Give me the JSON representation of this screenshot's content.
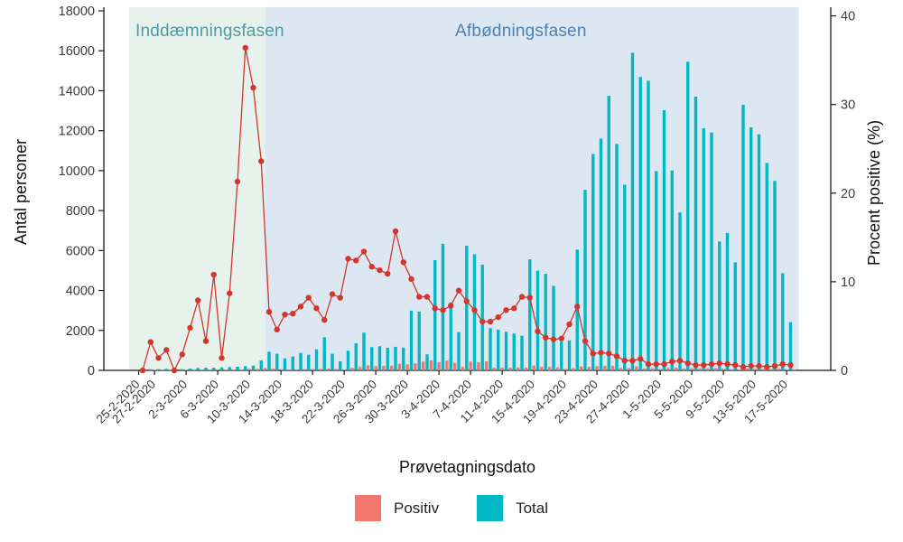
{
  "chart_data": {
    "type": "bar",
    "subtype": "dual-axis daily bars with percent line",
    "title": "",
    "x_axis": {
      "label": "Prøvetagningsdato",
      "tick_labels": [
        "25-2-2020",
        "27-2-2020",
        "2-3-2020",
        "6-3-2020",
        "10-3-2020",
        "14-3-2020",
        "18-3-2020",
        "22-3-2020",
        "26-3-2020",
        "30-3-2020",
        "3-4-2020",
        "7-4-2020",
        "11-4-2020",
        "15-4-2020",
        "19-4-2020",
        "23-4-2020",
        "27-4-2020",
        "1-5-2020",
        "5-5-2020",
        "9-5-2020",
        "13-5-2020",
        "17-5-2020"
      ]
    },
    "y_axis_left": {
      "label": "Antal personer",
      "min": 0,
      "max": 18000,
      "ticks": [
        0,
        2000,
        4000,
        6000,
        8000,
        10000,
        12000,
        14000,
        16000,
        18000
      ]
    },
    "y_axis_right": {
      "label": "Procent positive (%)",
      "min": 0,
      "max": 40,
      "ticks": [
        0,
        10,
        20,
        30,
        40
      ]
    },
    "phases": [
      {
        "name": "Inddæmningsfasen",
        "start": "25-2-2020",
        "end": "11-3-2020",
        "fill": "#e7f2ec",
        "label_color": "#4f9ba3"
      },
      {
        "name": "Afbødningsfasen",
        "start": "12-3-2020",
        "end": "17-5-2020",
        "fill": "#dce7f2",
        "label_color": "#4a82b3"
      }
    ],
    "legend": [
      {
        "label": "Positiv",
        "color": "#f4776e"
      },
      {
        "label": "Total",
        "color": "#00b9c4"
      }
    ],
    "dates": [
      "25-2-2020",
      "26-2-2020",
      "27-2-2020",
      "28-2-2020",
      "29-2-2020",
      "1-3-2020",
      "2-3-2020",
      "3-3-2020",
      "4-3-2020",
      "5-3-2020",
      "6-3-2020",
      "7-3-2020",
      "8-3-2020",
      "9-3-2020",
      "10-3-2020",
      "11-3-2020",
      "12-3-2020",
      "13-3-2020",
      "14-3-2020",
      "15-3-2020",
      "16-3-2020",
      "17-3-2020",
      "18-3-2020",
      "19-3-2020",
      "20-3-2020",
      "21-3-2020",
      "22-3-2020",
      "23-3-2020",
      "24-3-2020",
      "25-3-2020",
      "26-3-2020",
      "27-3-2020",
      "28-3-2020",
      "29-3-2020",
      "30-3-2020",
      "31-3-2020",
      "1-4-2020",
      "2-4-2020",
      "3-4-2020",
      "4-4-2020",
      "5-4-2020",
      "6-4-2020",
      "7-4-2020",
      "8-4-2020",
      "9-4-2020",
      "10-4-2020",
      "11-4-2020",
      "12-4-2020",
      "13-4-2020",
      "14-4-2020",
      "15-4-2020",
      "16-4-2020",
      "17-4-2020",
      "18-4-2020",
      "19-4-2020",
      "20-4-2020",
      "21-4-2020",
      "22-4-2020",
      "23-4-2020",
      "24-4-2020",
      "25-4-2020",
      "26-4-2020",
      "27-4-2020",
      "28-4-2020",
      "29-4-2020",
      "30-4-2020",
      "1-5-2020",
      "2-5-2020",
      "3-5-2020",
      "4-5-2020",
      "5-5-2020",
      "6-5-2020",
      "7-5-2020",
      "8-5-2020",
      "9-5-2020",
      "10-5-2020",
      "11-5-2020",
      "12-5-2020",
      "13-5-2020",
      "14-5-2020",
      "15-5-2020",
      "16-5-2020",
      "17-5-2020"
    ],
    "series": [
      {
        "name": "Total",
        "type": "bar",
        "axis": "left",
        "color": "#00b9c4",
        "values": [
          30,
          60,
          60,
          75,
          90,
          60,
          90,
          120,
          135,
          135,
          150,
          165,
          180,
          210,
          240,
          500,
          935,
          830,
          600,
          695,
          875,
          785,
          1055,
          1660,
          830,
          455,
          985,
          1360,
          1890,
          1165,
          1210,
          1130,
          1180,
          1135,
          2990,
          2945,
          800,
          5515,
          6340,
          3400,
          1920,
          6245,
          5820,
          5290,
          2115,
          2040,
          1935,
          1845,
          1735,
          5560,
          4990,
          4835,
          4230,
          1435,
          1500,
          6045,
          9035,
          10835,
          11605,
          13750,
          11335,
          9295,
          15900,
          14690,
          14500,
          9975,
          13025,
          10005,
          7905,
          15450,
          13705,
          12120,
          11910,
          6455,
          6880,
          5410,
          13300,
          12165,
          11820,
          10385,
          9490,
          4865,
          2415
        ]
      },
      {
        "name": "Positiv",
        "type": "bar",
        "axis": "left",
        "color": "#f4776e",
        "values": [
          0,
          2,
          1,
          2,
          0,
          1,
          4,
          10,
          4,
          15,
          2,
          15,
          38,
          75,
          75,
          120,
          90,
          60,
          40,
          45,
          65,
          65,
          75,
          95,
          70,
          40,
          125,
          170,
          255,
          210,
          225,
          240,
          330,
          300,
          350,
          440,
          500,
          410,
          485,
          375,
          175,
          440,
          410,
          455,
          130,
          140,
          135,
          150,
          145,
          245,
          185,
          170,
          150,
          75,
          110,
          200,
          175,
          210,
          225,
          225,
          125,
          105,
          200,
          100,
          105,
          75,
          120,
          140,
          100,
          110,
          100,
          100,
          110,
          80,
          60,
          50,
          90,
          80,
          70,
          70,
          90,
          50,
          40
        ]
      },
      {
        "name": "Procent positive",
        "type": "line",
        "axis": "right",
        "color": "#d3362d",
        "values": [
          0,
          3.2,
          1.4,
          2.3,
          0,
          1.8,
          4.8,
          7.9,
          3.3,
          10.8,
          1.4,
          8.7,
          21.3,
          36.4,
          31.9,
          23.6,
          6.6,
          4.6,
          6.3,
          6.4,
          7.2,
          8.2,
          7.0,
          5.7,
          8.6,
          8.2,
          12.6,
          12.4,
          13.4,
          11.7,
          11.3,
          10.9,
          15.7,
          12.2,
          10.3,
          8.3,
          8.3,
          7.0,
          6.8,
          7.3,
          9.0,
          7.8,
          6.8,
          5.5,
          5.5,
          6.0,
          6.8,
          7.0,
          8.3,
          8.2,
          4.4,
          3.7,
          3.5,
          3.6,
          5.2,
          7.2,
          3.3,
          1.9,
          2.0,
          1.9,
          1.6,
          1.1,
          1.1,
          1.3,
          0.7,
          0.7,
          0.7,
          1.0,
          1.1,
          0.8,
          0.6,
          0.6,
          0.7,
          0.8,
          0.7,
          0.6,
          0.4,
          0.5,
          0.5,
          0.4,
          0.5,
          0.7,
          0.6
        ]
      }
    ],
    "layout": {
      "grid": false,
      "legend_position": "bottom-center",
      "axis_color": "#1a1a1a",
      "tick_text_color": "#3d3d3d"
    }
  }
}
